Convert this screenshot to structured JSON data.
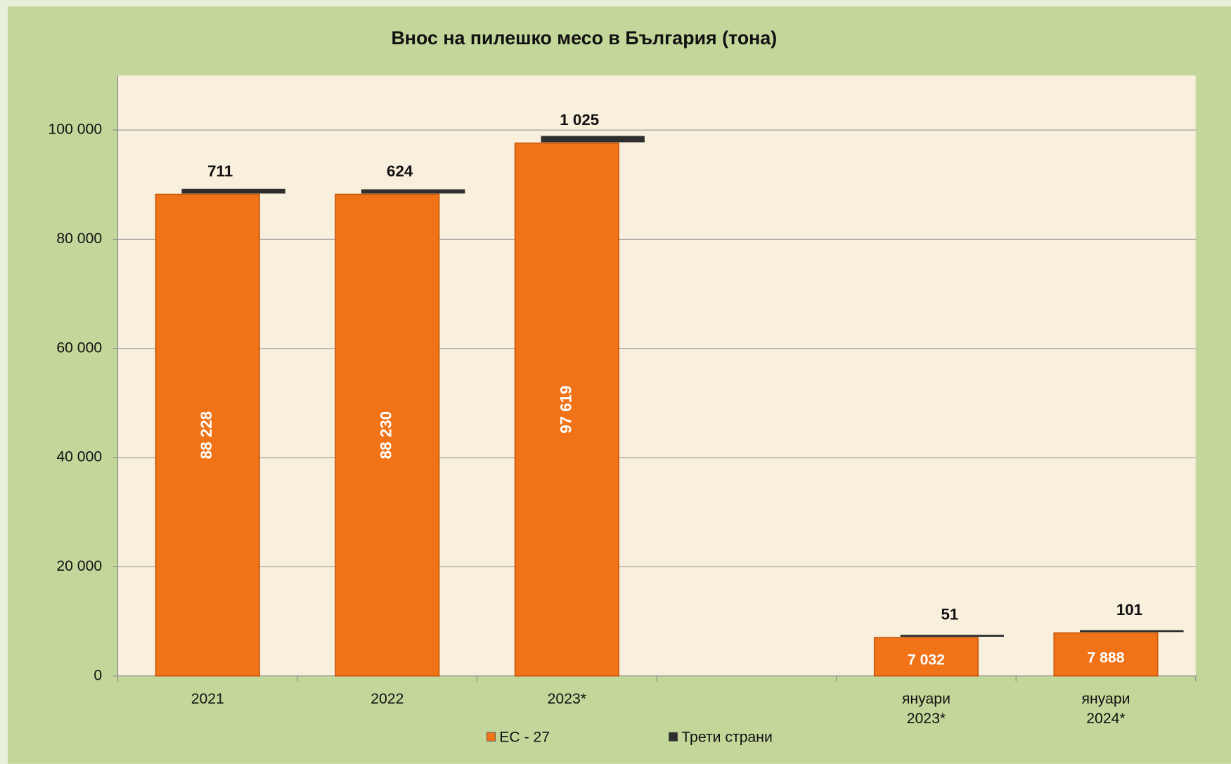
{
  "chart_data": {
    "type": "stacked_bar",
    "title": "Внос на пилешко месо в България (тона)",
    "categories": [
      "2021",
      "2022",
      "2023*",
      null,
      "януари 2023*",
      "януари 2024*"
    ],
    "series": [
      {
        "name": "ЕС - 27",
        "color": "#f07318",
        "values": [
          88228,
          88230,
          97619,
          null,
          7032,
          7888
        ],
        "value_labels": [
          "88 228",
          "88 230",
          "97 619",
          null,
          "7 032",
          "7 888"
        ]
      },
      {
        "name": "Трети страни",
        "color": "#2e2e2e",
        "values": [
          711,
          624,
          1025,
          null,
          51,
          101
        ],
        "value_labels": [
          "711",
          "624",
          "1 025",
          null,
          "51",
          "101"
        ]
      }
    ],
    "ylim": [
      0,
      110000
    ],
    "yticks": [
      0,
      {
        "value": 20000,
        "label": "20 000"
      },
      {
        "value": 40000,
        "label": "40 000"
      },
      {
        "value": 60000,
        "label": "60 000"
      },
      {
        "value": 80000,
        "label": "80 000"
      },
      {
        "value": 100000,
        "label": "100 000"
      }
    ],
    "grid": true,
    "legend": "bottom"
  }
}
